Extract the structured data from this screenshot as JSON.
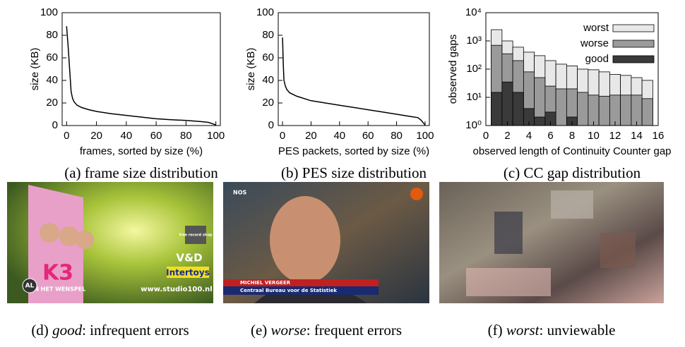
{
  "chart_data": [
    {
      "type": "line",
      "caption": "(a) frame size distribution",
      "xlabel": "frames, sorted by size (%)",
      "ylabel": "size (KB)",
      "x": [
        0,
        1,
        2,
        3,
        4,
        5,
        7,
        10,
        15,
        20,
        30,
        40,
        50,
        60,
        70,
        80,
        90,
        95,
        98,
        100
      ],
      "values": [
        88,
        70,
        50,
        30,
        24,
        21,
        18,
        16,
        14,
        12.5,
        10.5,
        9,
        7.5,
        6,
        5.2,
        4.5,
        3.5,
        2.8,
        1.5,
        0.5
      ],
      "color": "#000000",
      "xlim": [
        -3,
        103
      ],
      "ylim": [
        0,
        100
      ],
      "xticks": [
        0,
        20,
        40,
        60,
        80,
        100
      ],
      "yticks": [
        0,
        20,
        40,
        60,
        80,
        100
      ]
    },
    {
      "type": "line",
      "caption": "(b) PES size distribution",
      "xlabel": "PES packets, sorted by size (%)",
      "ylabel": "size (KB)",
      "x": [
        0,
        0.5,
        1,
        2,
        3,
        5,
        10,
        20,
        30,
        40,
        50,
        60,
        70,
        80,
        90,
        95,
        97,
        99,
        100
      ],
      "values": [
        78,
        55,
        40,
        35,
        32,
        29,
        26,
        22,
        20,
        18,
        16,
        14,
        12,
        10,
        8,
        7,
        5,
        2,
        0.5
      ],
      "color": "#000000",
      "xlim": [
        -3,
        103
      ],
      "ylim": [
        0,
        100
      ],
      "xticks": [
        0,
        20,
        40,
        60,
        80,
        100
      ],
      "yticks": [
        0,
        20,
        40,
        60,
        80,
        100
      ]
    },
    {
      "type": "bar",
      "caption": "(c) CC gap distribution",
      "xlabel": "observed length of Continuity Counter gap",
      "ylabel": "observed gaps",
      "yscale": "log",
      "legend": "upper right",
      "x": [
        1,
        2,
        3,
        4,
        5,
        6,
        7,
        8,
        9,
        10,
        11,
        12,
        13,
        14,
        15
      ],
      "series": [
        {
          "name": "worst",
          "color": "#e8e8e8",
          "values": [
            2500,
            1000,
            600,
            400,
            300,
            200,
            150,
            130,
            100,
            95,
            80,
            65,
            60,
            50,
            40
          ]
        },
        {
          "name": "worse",
          "color": "#9a9a9a",
          "values": [
            700,
            350,
            200,
            80,
            50,
            25,
            20,
            20,
            15,
            12,
            11,
            12,
            12,
            12,
            9
          ]
        },
        {
          "name": "good",
          "color": "#3a3a3a",
          "values": [
            15,
            35,
            15,
            4,
            2,
            3,
            null,
            2,
            null,
            null,
            null,
            null,
            null,
            null,
            null
          ]
        }
      ],
      "xlim": [
        0,
        16
      ],
      "ylim": [
        1,
        10000
      ],
      "xticks": [
        0,
        2,
        4,
        6,
        8,
        10,
        12,
        14,
        16
      ],
      "yticks": [
        {
          "value": 1,
          "label": "10⁰"
        },
        {
          "value": 10,
          "label": "10¹"
        },
        {
          "value": 100,
          "label": "10²"
        },
        {
          "value": 1000,
          "label": "10³"
        },
        {
          "value": 10000,
          "label": "10⁴"
        }
      ]
    }
  ],
  "images": [
    {
      "caption": {
        "label": "(d)",
        "emphasis": "good",
        "text": ": infrequent errors"
      },
      "texts": [
        "K3",
        "EN HET WENSPEL",
        "AL",
        "free record shop",
        "V&D",
        "Intertoys",
        "www.studio100.nl"
      ]
    },
    {
      "caption": {
        "label": "(e)",
        "emphasis": "worse",
        "text": ": frequent errors"
      },
      "texts": [
        "NOS",
        "MICHIEL VERGEER",
        "Centraal Bureau voor de Statistiek"
      ]
    },
    {
      "caption": {
        "label": "(f)",
        "emphasis": "worst",
        "text": ": unviewable"
      },
      "texts": []
    }
  ]
}
